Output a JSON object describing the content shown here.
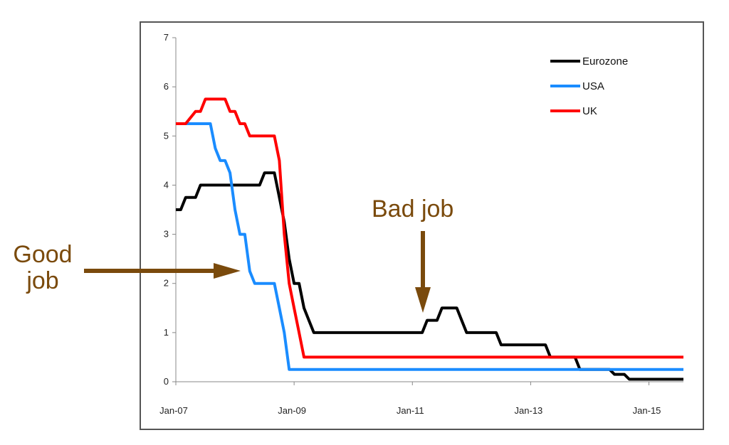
{
  "chart_data": {
    "type": "line",
    "title": "",
    "xlabel": "",
    "ylabel": "",
    "ylim": [
      0,
      7
    ],
    "yticks": [
      0,
      1,
      2,
      3,
      4,
      5,
      6,
      7
    ],
    "xlim": [
      "2007-01",
      "2015-08"
    ],
    "xticks": [
      "Jan-07",
      "Jan-09",
      "Jan-11",
      "Jan-13",
      "Jan-15"
    ],
    "grid": false,
    "legend_position": "top-right",
    "series": [
      {
        "name": "Eurozone",
        "color": "#000000",
        "points": [
          [
            "2007-01",
            3.5
          ],
          [
            "2007-02",
            3.5
          ],
          [
            "2007-03",
            3.75
          ],
          [
            "2007-05",
            3.75
          ],
          [
            "2007-06",
            4.0
          ],
          [
            "2008-06",
            4.0
          ],
          [
            "2008-07",
            4.25
          ],
          [
            "2008-09",
            4.25
          ],
          [
            "2008-10",
            3.75
          ],
          [
            "2008-11",
            3.25
          ],
          [
            "2008-12",
            2.5
          ],
          [
            "2009-01",
            2.0
          ],
          [
            "2009-02",
            2.0
          ],
          [
            "2009-03",
            1.5
          ],
          [
            "2009-04",
            1.25
          ],
          [
            "2009-05",
            1.0
          ],
          [
            "2011-03",
            1.0
          ],
          [
            "2011-04",
            1.25
          ],
          [
            "2011-06",
            1.25
          ],
          [
            "2011-07",
            1.5
          ],
          [
            "2011-10",
            1.5
          ],
          [
            "2011-11",
            1.25
          ],
          [
            "2011-12",
            1.0
          ],
          [
            "2012-06",
            1.0
          ],
          [
            "2012-07",
            0.75
          ],
          [
            "2013-04",
            0.75
          ],
          [
            "2013-05",
            0.5
          ],
          [
            "2013-10",
            0.5
          ],
          [
            "2013-11",
            0.25
          ],
          [
            "2014-05",
            0.25
          ],
          [
            "2014-06",
            0.15
          ],
          [
            "2014-08",
            0.15
          ],
          [
            "2014-09",
            0.05
          ],
          [
            "2015-08",
            0.05
          ]
        ]
      },
      {
        "name": "USA",
        "color": "#1a8cff",
        "points": [
          [
            "2007-01",
            5.25
          ],
          [
            "2007-08",
            5.25
          ],
          [
            "2007-09",
            4.75
          ],
          [
            "2007-10",
            4.5
          ],
          [
            "2007-11",
            4.5
          ],
          [
            "2007-12",
            4.25
          ],
          [
            "2008-01",
            3.5
          ],
          [
            "2008-02",
            3.0
          ],
          [
            "2008-03",
            3.0
          ],
          [
            "2008-04",
            2.25
          ],
          [
            "2008-05",
            2.0
          ],
          [
            "2008-09",
            2.0
          ],
          [
            "2008-10",
            1.5
          ],
          [
            "2008-11",
            1.0
          ],
          [
            "2008-12",
            0.25
          ],
          [
            "2015-08",
            0.25
          ]
        ]
      },
      {
        "name": "UK",
        "color": "#ff0000",
        "points": [
          [
            "2007-01",
            5.25
          ],
          [
            "2007-03",
            5.25
          ],
          [
            "2007-05",
            5.5
          ],
          [
            "2007-06",
            5.5
          ],
          [
            "2007-07",
            5.75
          ],
          [
            "2007-11",
            5.75
          ],
          [
            "2007-12",
            5.5
          ],
          [
            "2008-01",
            5.5
          ],
          [
            "2008-02",
            5.25
          ],
          [
            "2008-03",
            5.25
          ],
          [
            "2008-04",
            5.0
          ],
          [
            "2008-09",
            5.0
          ],
          [
            "2008-10",
            4.5
          ],
          [
            "2008-11",
            3.0
          ],
          [
            "2008-12",
            2.0
          ],
          [
            "2009-01",
            1.5
          ],
          [
            "2009-02",
            1.0
          ],
          [
            "2009-03",
            0.5
          ],
          [
            "2015-08",
            0.5
          ]
        ]
      }
    ]
  },
  "annotations": {
    "good_job_line1": "Good",
    "good_job_line2": "job",
    "bad_job": "Bad job",
    "arrow_color": "#7a4a0c"
  }
}
